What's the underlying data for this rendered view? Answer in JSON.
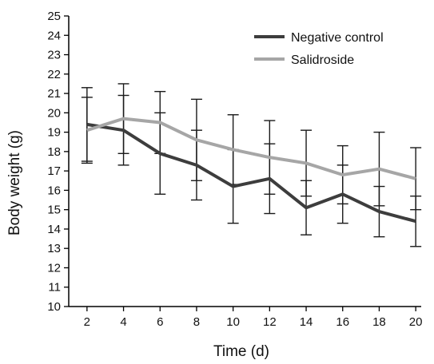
{
  "chart_data": {
    "type": "line",
    "title": "",
    "xlabel": "Time (d)",
    "ylabel": "Body weight (g)",
    "x": [
      2,
      4,
      6,
      8,
      10,
      12,
      14,
      16,
      18,
      20
    ],
    "xlim": [
      1,
      20.3
    ],
    "ylim": [
      10,
      25
    ],
    "xticks": [
      "2",
      "4",
      "6",
      "8",
      "10",
      "12",
      "14",
      "16",
      "18",
      "20"
    ],
    "yticks": [
      "10",
      "11",
      "12",
      "13",
      "14",
      "15",
      "16",
      "17",
      "18",
      "19",
      "20",
      "21",
      "22",
      "23",
      "24",
      "25"
    ],
    "grid": false,
    "legend": "top-right",
    "series": [
      {
        "name": "Negative control",
        "color": "#3d3d3d",
        "values": [
          19.4,
          19.1,
          17.9,
          17.3,
          16.2,
          16.6,
          15.1,
          15.8,
          14.9,
          14.4
        ],
        "error": [
          1.9,
          1.8,
          2.1,
          1.8,
          1.9,
          1.8,
          1.4,
          1.5,
          1.3,
          1.3
        ]
      },
      {
        "name": "Salidroside",
        "color": "#a6a6a6",
        "values": [
          19.1,
          19.7,
          19.5,
          18.6,
          18.1,
          17.7,
          17.4,
          16.8,
          17.1,
          16.6
        ],
        "error": [
          1.7,
          1.8,
          1.6,
          2.1,
          1.8,
          1.9,
          1.7,
          1.5,
          1.9,
          1.6
        ]
      }
    ]
  }
}
